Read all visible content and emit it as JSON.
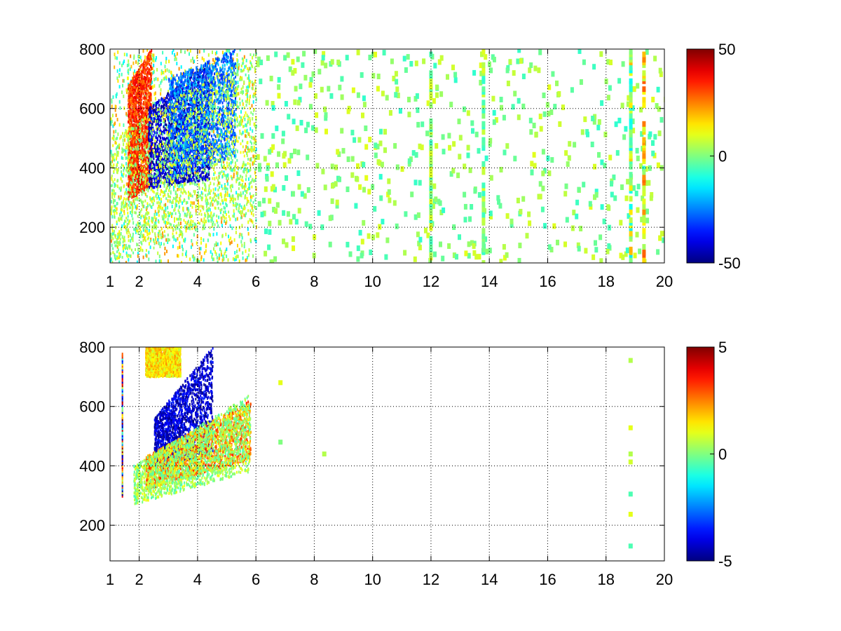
{
  "chart_data": [
    {
      "type": "heatmap",
      "title": "",
      "xlabel": "",
      "ylabel": "",
      "xlim": [
        1,
        20
      ],
      "ylim": [
        80,
        800
      ],
      "xticks": [
        1,
        2,
        4,
        6,
        8,
        10,
        12,
        14,
        16,
        18,
        20
      ],
      "yticks": [
        200,
        400,
        600,
        800
      ],
      "grid": "dotted",
      "colormap": "jet",
      "colorbar": {
        "min": -50,
        "max": 50,
        "ticks": [
          -50,
          0,
          50
        ]
      },
      "regions": [
        {
          "kind": "band",
          "x": [
            1.6,
            2.4
          ],
          "y0": [
            290,
            340
          ],
          "y1": [
            680,
            800
          ],
          "value": 32
        },
        {
          "kind": "band",
          "x": [
            2.3,
            4.4
          ],
          "y0": [
            330,
            360
          ],
          "y1": [
            600,
            760
          ],
          "value": -42
        },
        {
          "kind": "band",
          "x": [
            3.0,
            5.3
          ],
          "y0": [
            360,
            440
          ],
          "y1": [
            700,
            800
          ],
          "value": -26
        },
        {
          "kind": "band",
          "x": [
            1.0,
            6.0
          ],
          "y0": [
            80,
            250
          ],
          "y1": [
            500,
            800
          ],
          "value": 4
        }
      ],
      "scatter_zones": [
        {
          "x": [
            1.0,
            6.0
          ],
          "y": [
            80,
            800
          ],
          "values": [
            -15,
            25
          ]
        },
        {
          "x": [
            6.0,
            20.0
          ],
          "y": [
            80,
            800
          ],
          "values": [
            -8,
            10
          ]
        }
      ],
      "columns": [
        {
          "x": 18.85,
          "values": [
            -15,
            20
          ]
        },
        {
          "x": 19.3,
          "values": [
            0,
            30
          ]
        },
        {
          "x": 12.0,
          "values": [
            -8,
            10
          ]
        },
        {
          "x": 13.8,
          "values": [
            -8,
            10
          ]
        }
      ]
    },
    {
      "type": "heatmap",
      "title": "",
      "xlabel": "",
      "ylabel": "",
      "xlim": [
        1,
        20
      ],
      "ylim": [
        80,
        800
      ],
      "xticks": [
        1,
        2,
        4,
        6,
        8,
        10,
        12,
        14,
        16,
        18,
        20
      ],
      "yticks": [
        200,
        400,
        600,
        800
      ],
      "grid": "dotted",
      "colormap": "jet",
      "colorbar": {
        "min": -5,
        "max": 5,
        "ticks": [
          -5,
          0,
          5
        ]
      },
      "regions": [
        {
          "kind": "band",
          "x": [
            2.5,
            4.5
          ],
          "y0": [
            390,
            440
          ],
          "y1": [
            560,
            800
          ],
          "value": -4.2
        },
        {
          "kind": "band",
          "x": [
            2.2,
            5.8
          ],
          "y0": [
            320,
            420
          ],
          "y1": [
            430,
            620
          ],
          "value": 2.5
        },
        {
          "kind": "band",
          "x": [
            1.8,
            5.8
          ],
          "y0": [
            270,
            380
          ],
          "y1": [
            400,
            640
          ],
          "value": 0.3
        },
        {
          "kind": "band",
          "x": [
            2.2,
            3.4
          ],
          "y0": [
            700,
            700
          ],
          "y1": [
            800,
            800
          ],
          "value": 1.5
        }
      ],
      "lines": [
        {
          "x": 1.4,
          "y": [
            300,
            780
          ],
          "values": [
            -5,
            5
          ]
        }
      ],
      "points": [
        {
          "x": 6.85,
          "y": 680,
          "value": 1
        },
        {
          "x": 6.85,
          "y": 480,
          "value": 0
        },
        {
          "x": 8.35,
          "y": 440,
          "value": 0.5
        },
        {
          "x": 18.85,
          "y": 755,
          "value": 0.5
        },
        {
          "x": 18.85,
          "y": 528,
          "value": 1
        },
        {
          "x": 18.85,
          "y": 440,
          "value": 0.5
        },
        {
          "x": 18.85,
          "y": 413,
          "value": 0.8
        },
        {
          "x": 18.85,
          "y": 305,
          "value": -0.5
        },
        {
          "x": 18.85,
          "y": 237,
          "value": 1
        },
        {
          "x": 18.85,
          "y": 130,
          "value": -0.5
        }
      ]
    }
  ]
}
